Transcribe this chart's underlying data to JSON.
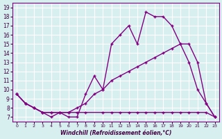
{
  "xlabel": "Windchill (Refroidissement éolien,°C)",
  "bg_color": "#d8eff0",
  "line_color": "#800080",
  "grid_color": "#ffffff",
  "line1_x": [
    0,
    1,
    2,
    3,
    4,
    5,
    6,
    7,
    8,
    9,
    10,
    11,
    12,
    13,
    14,
    15,
    16,
    17,
    18,
    19,
    20,
    21,
    22,
    23
  ],
  "line1_y": [
    9.5,
    8.5,
    8.0,
    7.5,
    7.0,
    7.5,
    7.0,
    7.0,
    9.5,
    11.5,
    10.0,
    15.0,
    16.0,
    17.0,
    15.0,
    18.5,
    18.0,
    18.0,
    17.0,
    15.0,
    13.0,
    10.0,
    8.5,
    7.0
  ],
  "line2_x": [
    0,
    1,
    2,
    3,
    4,
    5,
    6,
    7,
    8,
    9,
    10,
    11,
    12,
    13,
    14,
    15,
    16,
    17,
    18,
    19,
    20,
    21,
    22,
    23
  ],
  "line2_y": [
    9.5,
    8.5,
    8.0,
    7.5,
    7.5,
    7.5,
    7.5,
    8.0,
    8.5,
    9.5,
    10.0,
    11.0,
    11.5,
    12.0,
    12.5,
    13.0,
    13.5,
    14.0,
    14.5,
    15.0,
    15.0,
    13.0,
    8.5,
    7.0
  ],
  "line3_x": [
    0,
    1,
    2,
    3,
    4,
    5,
    6,
    7,
    8,
    10,
    11,
    12,
    13,
    14,
    15,
    16,
    17,
    18,
    19,
    20,
    21,
    22,
    23
  ],
  "line3_y": [
    9.5,
    8.5,
    8.0,
    7.5,
    7.5,
    7.5,
    7.5,
    7.5,
    7.5,
    7.5,
    7.5,
    7.5,
    7.5,
    7.5,
    7.5,
    7.5,
    7.5,
    7.5,
    7.5,
    7.5,
    7.5,
    7.5,
    7.0
  ],
  "xlim": [
    -0.5,
    23.5
  ],
  "ylim": [
    6.5,
    19.5
  ],
  "xticks": [
    0,
    1,
    2,
    3,
    4,
    5,
    6,
    7,
    8,
    9,
    10,
    11,
    12,
    13,
    14,
    15,
    16,
    17,
    18,
    19,
    20,
    21,
    22,
    23
  ],
  "yticks": [
    7,
    8,
    9,
    10,
    11,
    12,
    13,
    14,
    15,
    16,
    17,
    18,
    19
  ]
}
